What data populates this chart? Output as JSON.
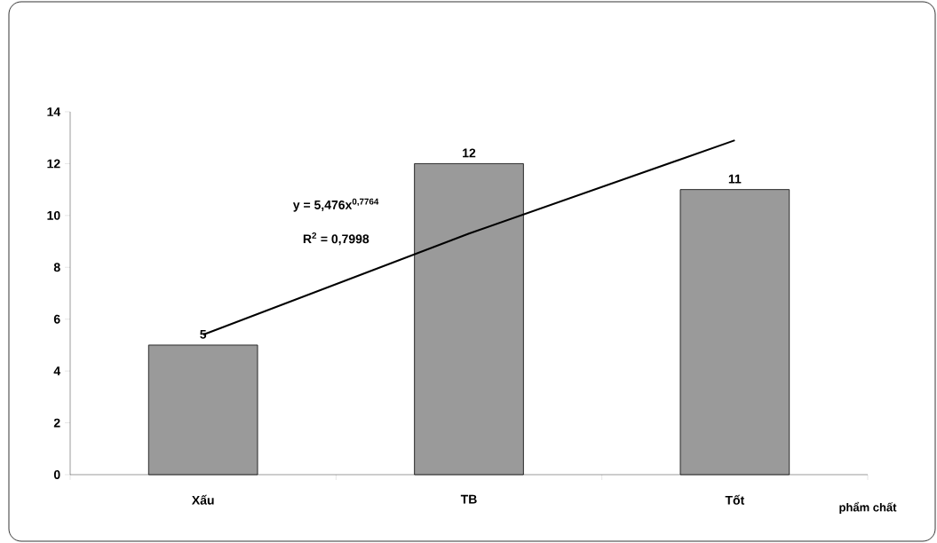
{
  "chart_data": {
    "type": "bar",
    "categories": [
      "Xấu",
      "TB",
      "Tốt"
    ],
    "xlabel": "phẩm chất",
    "ylim": [
      0,
      14
    ],
    "yticks": [
      0,
      2,
      4,
      6,
      8,
      10,
      12,
      14
    ],
    "series": [
      {
        "color": "#9a9a9a",
        "values": [
          5,
          12,
          11
        ],
        "value_labels": [
          "5",
          "12",
          "11"
        ]
      },
      {
        "type": "line",
        "color": "#000000",
        "values": [
          5.4,
          9.3,
          12.9
        ]
      }
    ],
    "annotations": [
      "y = 5,476x$^{0,7764}$",
      "R$^{2}$ = 0,7998"
    ]
  }
}
